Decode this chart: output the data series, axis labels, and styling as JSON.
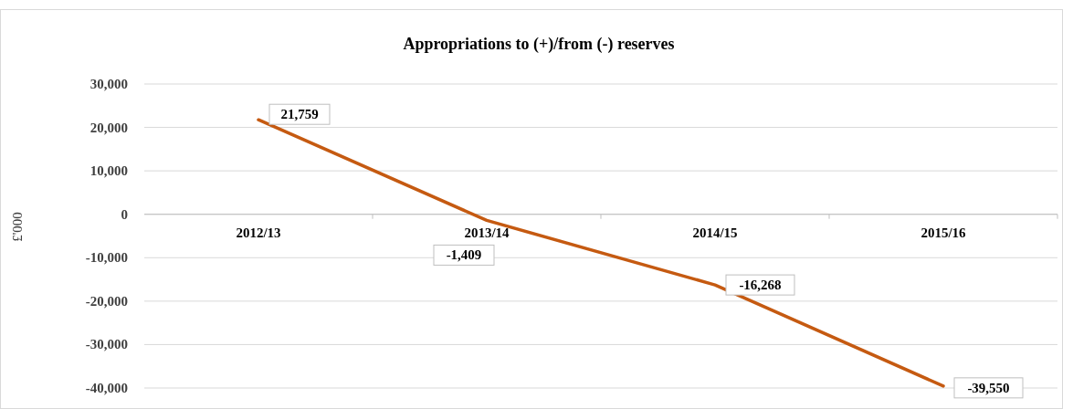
{
  "chart_data": {
    "type": "line",
    "title": "Appropriations to (+)/from (-) reserves",
    "ylabel": "£'000",
    "categories": [
      "2012/13",
      "2013/14",
      "2014/15",
      "2015/16"
    ],
    "series": [
      {
        "color": "#c55a11",
        "values": [
          21759,
          -1409,
          -16268,
          -39550
        ],
        "value_labels": [
          "21,759",
          "-1,409",
          "-16,268",
          "-39,550"
        ]
      }
    ],
    "ylim": [
      -40000,
      30000
    ],
    "yticks": [
      {
        "value": -40000,
        "label": "-40,000"
      },
      {
        "value": -30000,
        "label": "-30,000"
      },
      {
        "value": -20000,
        "label": "-20,000"
      },
      {
        "value": -10000,
        "label": "-10,000"
      },
      0,
      {
        "value": 10000,
        "label": "10,000"
      },
      {
        "value": 20000,
        "label": "20,000"
      },
      {
        "value": 30000,
        "label": "30,000"
      }
    ],
    "grid": "y",
    "marker": "none",
    "line_style": "solid"
  }
}
